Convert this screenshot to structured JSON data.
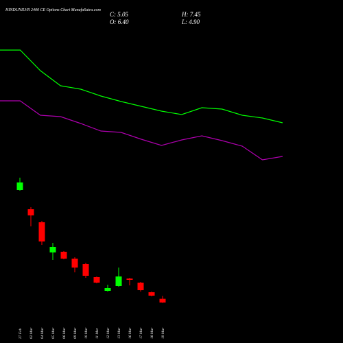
{
  "chart_data": {
    "type": "candlestick",
    "title": "HINDUNILVR 2400 CE Options Chart MunafaSutra.com",
    "ohlc_labels": {
      "close": "C: 5.05",
      "open": "O: 6.40",
      "high": "H: 7.45",
      "low": "L: 4.90"
    },
    "categories": [
      "27 Feb",
      "02 Mar",
      "04 Mar",
      "05 Mar",
      "06 Mar",
      "09 Mar",
      "10 Mar",
      "11 Mar",
      "12 Mar",
      "13 Mar",
      "16 Mar",
      "17 Mar",
      "18 Mar",
      "19 Mar"
    ],
    "open": [
      46.05,
      39.05,
      34.3,
      23.3,
      23.55,
      21.05,
      19.05,
      14.3,
      9.3,
      11.05,
      13.8,
      12.3,
      8.8,
      6.4
    ],
    "high": [
      50.55,
      39.8,
      34.8,
      26.8,
      23.8,
      21.55,
      19.55,
      14.55,
      11.55,
      17.8,
      14.05,
      12.55,
      9.05,
      7.45
    ],
    "low": [
      45.8,
      32.8,
      26.05,
      20.55,
      20.8,
      16.05,
      14.05,
      12.05,
      9.05,
      10.8,
      11.3,
      9.05,
      7.3,
      4.9
    ],
    "close": [
      48.8,
      36.8,
      27.3,
      25.3,
      21.05,
      17.8,
      14.8,
      12.3,
      10.3,
      14.55,
      13.3,
      9.55,
      7.55,
      5.05
    ],
    "up_color": "#00ff00",
    "down_color": "#ff0000",
    "ylim": [
      -9.7,
      115.3
    ],
    "lines": {
      "x": [
        0,
        1,
        2,
        3,
        4,
        5,
        6,
        7,
        8,
        9,
        10,
        11,
        12,
        13,
        14
      ],
      "xlim": [
        0,
        14
      ],
      "series": [
        {
          "color": "#00ff00",
          "values": [
            97.05,
            97.05,
            89.55,
            84.05,
            82.8,
            80.3,
            78.3,
            76.55,
            74.8,
            73.55,
            76.05,
            75.55,
            73.3,
            72.3,
            70.55
          ]
        },
        {
          "color": "#b000b0",
          "values": [
            78.55,
            78.55,
            73.3,
            72.8,
            70.3,
            67.55,
            67.05,
            64.55,
            62.3,
            64.3,
            65.8,
            64.05,
            62.05,
            57.05,
            58.3
          ]
        }
      ]
    }
  }
}
